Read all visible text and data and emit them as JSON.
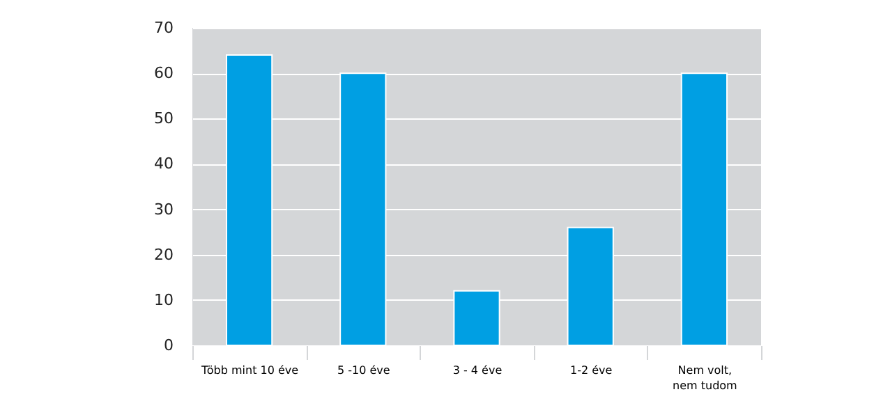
{
  "chart_data": {
    "type": "bar",
    "categories": [
      "Több mint 10 éve",
      "5 -10 éve",
      "3 - 4 éve",
      "1-2 éve",
      "Nem volt,\nnem tudom"
    ],
    "values": [
      64,
      60,
      12,
      26,
      60
    ],
    "color": "#009fe3",
    "ylim": [
      0,
      70
    ],
    "yticks": [
      0,
      10,
      20,
      30,
      40,
      50,
      60,
      70
    ],
    "grid": "y"
  }
}
